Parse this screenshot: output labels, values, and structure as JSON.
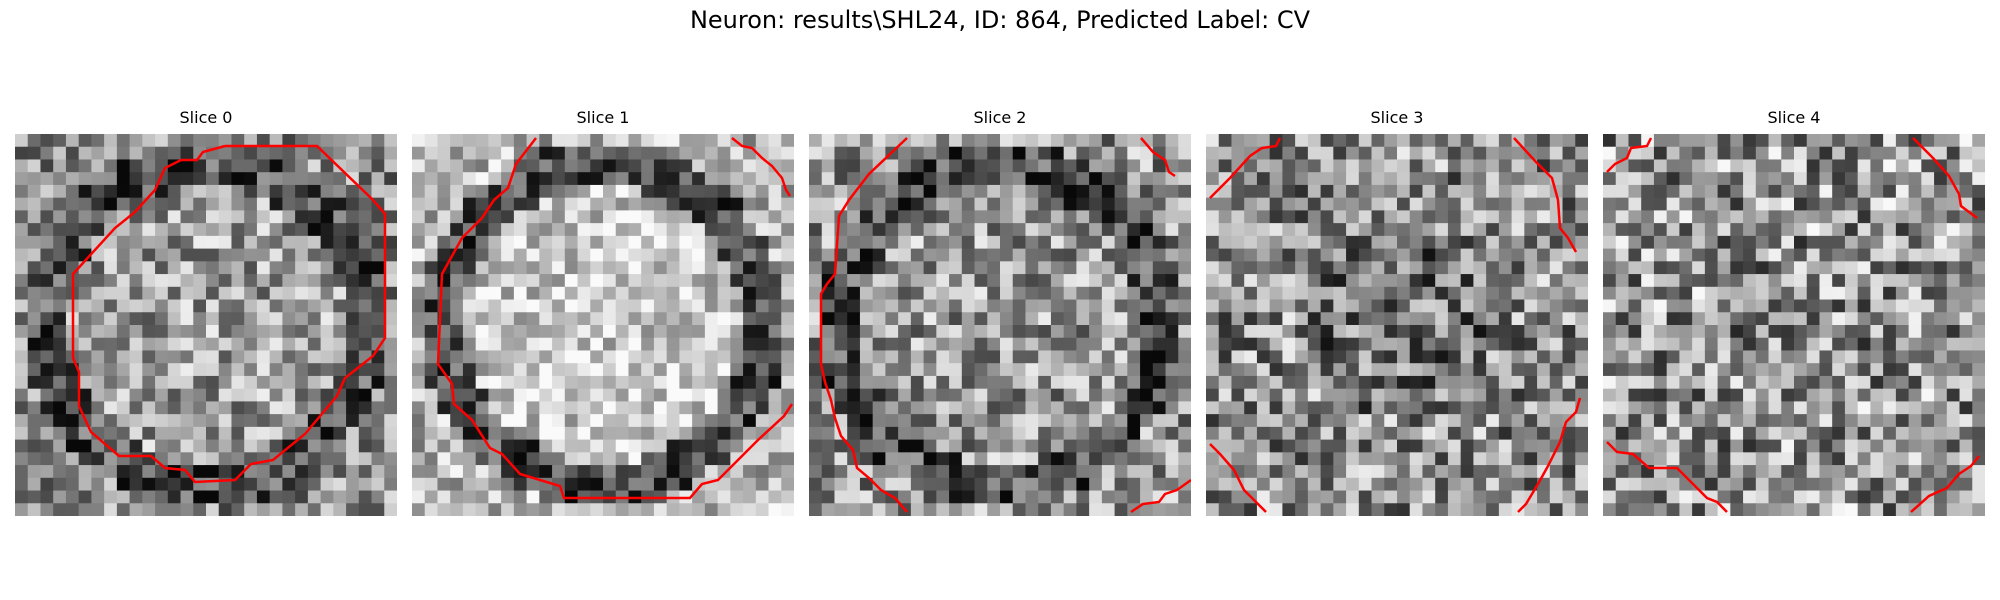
{
  "figure": {
    "title": "Neuron: results\\SHL24, ID: 864, Predicted Label: CV",
    "contour_color": "#ff0000",
    "colormap": "gray"
  },
  "slices": [
    {
      "label": "Slice 0",
      "brightness": 0.55,
      "contrast": 0.32,
      "dark_ring": true,
      "center_light": 0.62,
      "seed": 11
    },
    {
      "label": "Slice 1",
      "brightness": 0.7,
      "contrast": 0.28,
      "dark_ring": true,
      "center_light": 0.8,
      "seed": 23
    },
    {
      "label": "Slice 2",
      "brightness": 0.58,
      "contrast": 0.34,
      "dark_ring": true,
      "center_light": 0.6,
      "seed": 37
    },
    {
      "label": "Slice 3",
      "brightness": 0.55,
      "contrast": 0.38,
      "dark_ring": false,
      "center_light": 0.45,
      "seed": 41
    },
    {
      "label": "Slice 4",
      "brightness": 0.58,
      "contrast": 0.4,
      "dark_ring": false,
      "center_light": 0.55,
      "seed": 53
    }
  ]
}
